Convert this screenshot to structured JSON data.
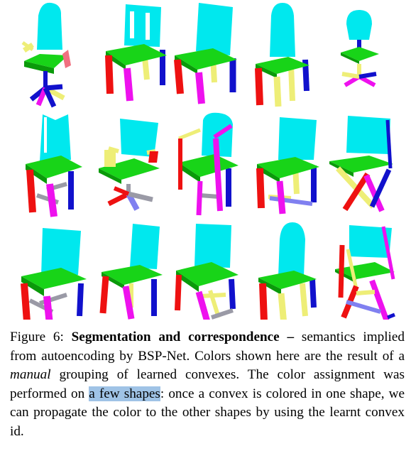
{
  "figure": {
    "rows": [
      [
        "office-chair-armrests",
        "slatted-back-chair",
        "plain-chair",
        "tall-rounded-back-chair",
        "office-swivel-chair"
      ],
      [
        "wing-back-chair",
        "swivel-chair-arms",
        "arm-chair",
        "stretcher-chair",
        "folding-crossed-leg-chair"
      ],
      [
        "upholstered-chair",
        "simple-chair",
        "cantilever-chair",
        "round-back-chair",
        "folding-chair"
      ]
    ],
    "palette": {
      "back": "#00e8ee",
      "seat": "#18d418",
      "seat_edge": "#0a9a0a",
      "front_left_leg": "#ee1111",
      "front_right_leg": "#ee11ee",
      "back_leg": "#1111cc",
      "back_right_leg": "#ee11ee",
      "rail": "#eeee77",
      "stretcher": "#8080f0",
      "grey_rail": "#9a9aa6",
      "arm_pink": "#f07080"
    }
  },
  "caption": {
    "label": "Figure 6: ",
    "bold": "Segmentation and correspondence –",
    "t1": " semantics implied from autoencoding by BSP-Net. Colors shown here are the result of a ",
    "italic": "manual",
    "t2": " grouping of learned convexes. The color assignment was performed on ",
    "highlight": "a few shapes",
    "t3": ": once a convex is colored in one shape, we can propagate the color to the other shapes by using the learnt convex id."
  }
}
